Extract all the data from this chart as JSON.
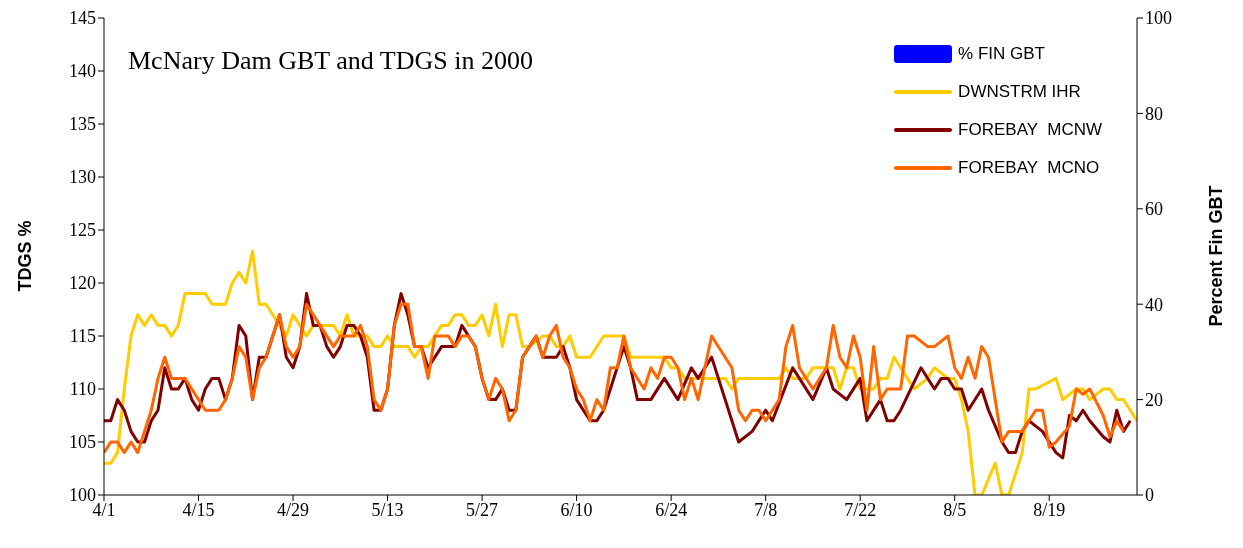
{
  "chart_data": {
    "type": "line",
    "title": "McNary Dam GBT and TDGS in 2000",
    "ylabel": "TDGS %",
    "y2label": "Percent Fin GBT",
    "xlim": [
      "--04-01",
      "--09-01"
    ],
    "xticks": [
      {
        "value": "--04-01",
        "label": "4/1"
      },
      {
        "value": "--04-15",
        "label": "4/15"
      },
      {
        "value": "--04-29",
        "label": "4/29"
      },
      {
        "value": "--05-13",
        "label": "5/13"
      },
      {
        "value": "--05-27",
        "label": "5/27"
      },
      {
        "value": "--06-10",
        "label": "6/10"
      },
      {
        "value": "--06-24",
        "label": "6/24"
      },
      {
        "value": "--07-08",
        "label": "7/8"
      },
      {
        "value": "--07-22",
        "label": "7/22"
      },
      {
        "value": "--08-05",
        "label": "8/5"
      },
      {
        "value": "--08-19",
        "label": "8/19"
      }
    ],
    "ylim": [
      100,
      145
    ],
    "yticks": [
      100,
      105,
      110,
      115,
      120,
      125,
      130,
      135,
      140,
      145
    ],
    "y2lim": [
      0,
      100
    ],
    "y2ticks": [
      0,
      20,
      40,
      60,
      80,
      100
    ],
    "legend": "top right",
    "marker": "none",
    "line_style": "solid",
    "series": [
      {
        "name": "% FIN GBT",
        "type": "bar",
        "color": "#0000ff"
      },
      {
        "name": "DWNSTRM IHR",
        "color": "#ffcc00",
        "x": [
          "--04-01",
          "--04-02",
          "--04-03",
          "--04-04",
          "--04-05",
          "--04-06",
          "--04-07",
          "--04-08",
          "--04-09",
          "--04-10",
          "--04-11",
          "--04-12",
          "--04-13",
          "--04-14",
          "--04-16",
          "--04-17",
          "--04-19",
          "--04-20",
          "--04-21",
          "--04-22",
          "--04-23",
          "--04-24",
          "--04-25",
          "--04-26",
          "--04-27",
          "--04-28",
          "--04-29",
          "--04-30",
          "--05-01",
          "--05-02",
          "--05-05",
          "--05-06",
          "--05-07",
          "--05-08",
          "--05-10",
          "--05-11",
          "--05-12",
          "--05-13",
          "--05-14",
          "--05-16",
          "--05-17",
          "--05-18",
          "--05-19",
          "--05-21",
          "--05-22",
          "--05-23",
          "--05-24",
          "--05-25",
          "--05-26",
          "--05-27",
          "--05-28",
          "--05-29",
          "--05-30",
          "--05-31",
          "--06-01",
          "--06-02",
          "--06-03",
          "--06-05",
          "--06-06",
          "--06-07",
          "--06-08",
          "--06-09",
          "--06-10",
          "--06-12",
          "--06-14",
          "--06-16",
          "--06-17",
          "--06-18",
          "--06-23",
          "--06-24",
          "--06-25",
          "--06-26",
          "--07-02",
          "--07-03",
          "--07-04",
          "--07-10",
          "--07-11",
          "--07-12",
          "--07-14",
          "--07-15",
          "--07-18",
          "--07-19",
          "--07-20",
          "--07-21",
          "--07-22",
          "--07-23",
          "--07-24",
          "--07-25",
          "--07-26",
          "--07-27",
          "--07-28",
          "--07-29",
          "--07-30",
          "--08-01",
          "--08-02",
          "--08-04",
          "--08-05",
          "--08-06",
          "--08-07",
          "--08-08",
          "--08-09",
          "--08-11",
          "--08-12",
          "--08-13",
          "--08-15",
          "--08-16",
          "--08-17",
          "--08-20",
          "--08-21",
          "--08-23",
          "--08-24",
          "--08-25",
          "--08-27",
          "--08-28",
          "--08-29",
          "--08-30",
          "--08-31",
          "--09-01"
        ],
        "values": [
          103,
          103,
          104,
          110,
          115,
          117,
          116,
          117,
          116,
          116,
          115,
          116,
          119,
          119,
          119,
          118,
          118,
          120,
          121,
          120,
          123,
          118,
          118,
          117,
          116,
          115,
          117,
          116,
          115,
          116,
          116,
          115,
          117,
          115,
          115,
          114,
          114,
          115,
          114,
          114,
          113,
          114,
          114,
          116,
          116,
          117,
          117,
          116,
          116,
          117,
          115,
          118,
          114,
          117,
          117,
          114,
          114,
          115,
          115,
          114,
          114,
          115,
          113,
          113,
          115,
          115,
          115,
          113,
          113,
          112,
          112,
          111,
          111,
          110,
          111,
          111,
          112,
          111,
          111,
          112,
          112,
          110,
          112,
          112,
          110,
          110,
          110,
          111,
          111,
          113,
          112,
          111,
          110,
          111,
          112,
          111,
          111,
          109,
          106,
          100,
          100,
          103,
          100,
          100,
          104,
          110,
          110,
          111,
          109,
          110,
          110,
          109,
          110,
          110,
          109,
          109,
          108,
          107
        ]
      },
      {
        "name": "FOREBAY  MCNW",
        "color": "#800000",
        "x": [
          "--04-01",
          "--04-02",
          "--04-03",
          "--04-04",
          "--04-05",
          "--04-06",
          "--04-07",
          "--04-08",
          "--04-09",
          "--04-10",
          "--04-11",
          "--04-12",
          "--04-13",
          "--04-14",
          "--04-15",
          "--04-16",
          "--04-17",
          "--04-18",
          "--04-19",
          "--04-20",
          "--04-21",
          "--04-22",
          "--04-23",
          "--04-24",
          "--04-25",
          "--04-27",
          "--04-28",
          "--04-29",
          "--04-30",
          "--05-01",
          "--05-02",
          "--05-03",
          "--05-04",
          "--05-05",
          "--05-06",
          "--05-07",
          "--05-08",
          "--05-09",
          "--05-10",
          "--05-11",
          "--05-12",
          "--05-13",
          "--05-14",
          "--05-15",
          "--05-16",
          "--05-17",
          "--05-18",
          "--05-19",
          "--05-20",
          "--05-21",
          "--05-23",
          "--05-24",
          "--05-25",
          "--05-26",
          "--05-27",
          "--05-28",
          "--05-29",
          "--05-30",
          "--05-31",
          "--06-01",
          "--06-02",
          "--06-03",
          "--06-04",
          "--06-05",
          "--06-07",
          "--06-08",
          "--06-09",
          "--06-10",
          "--06-11",
          "--06-12",
          "--06-13",
          "--06-14",
          "--06-15",
          "--06-17",
          "--06-18",
          "--06-19",
          "--06-21",
          "--06-23",
          "--06-25",
          "--06-27",
          "--06-28",
          "--06-30",
          "--07-01",
          "--07-03",
          "--07-04",
          "--07-06",
          "--07-07",
          "--07-08",
          "--07-09",
          "--07-12",
          "--07-13",
          "--07-15",
          "--07-17",
          "--07-18",
          "--07-20",
          "--07-22",
          "--07-23",
          "--07-25",
          "--07-26",
          "--07-27",
          "--07-28",
          "--07-31",
          "--08-02",
          "--08-03",
          "--08-04",
          "--08-05",
          "--08-06",
          "--08-07",
          "--08-09",
          "--08-10",
          "--08-12",
          "--08-13",
          "--08-14",
          "--08-15",
          "--08-16",
          "--08-17",
          "--08-18",
          "--08-20",
          "--08-21",
          "--08-22",
          "--08-23",
          "--08-24",
          "--08-25",
          "--08-27",
          "--08-28",
          "--08-29",
          "--08-30",
          "--08-31"
        ],
        "values": [
          107,
          107,
          109,
          108,
          106,
          105,
          105,
          107,
          108,
          112,
          110,
          110,
          111,
          109,
          108,
          110,
          111,
          111,
          109,
          111,
          116,
          115,
          109,
          113,
          113,
          117,
          113,
          112,
          114,
          119,
          116,
          116,
          114,
          113,
          114,
          116,
          116,
          115,
          113,
          108,
          108,
          110,
          116,
          119,
          117,
          114,
          114,
          112,
          113,
          114,
          114,
          116,
          115,
          114,
          111,
          109,
          109,
          110,
          108,
          108,
          113,
          114,
          115,
          113,
          113,
          114,
          112,
          109,
          108,
          107,
          107,
          108,
          110,
          114,
          112,
          109,
          109,
          111,
          109,
          112,
          111,
          113,
          111,
          107,
          105,
          106,
          107,
          108,
          107,
          112,
          111,
          109,
          112,
          110,
          109,
          111,
          107,
          109,
          107,
          107,
          108,
          112,
          110,
          111,
          111,
          110,
          110,
          108,
          110,
          108,
          105,
          104,
          104,
          106,
          107,
          106.5,
          106,
          104,
          103.5,
          107.5,
          107,
          108,
          107,
          105.5,
          105,
          108,
          106,
          107
        ]
      },
      {
        "name": "FOREBAY  MCNO",
        "color": "#ff6600",
        "x": [
          "--04-01",
          "--04-02",
          "--04-03",
          "--04-04",
          "--04-05",
          "--04-06",
          "--04-07",
          "--04-08",
          "--04-09",
          "--04-10",
          "--04-11",
          "--04-13",
          "--04-14",
          "--04-15",
          "--04-16",
          "--04-18",
          "--04-19",
          "--04-20",
          "--04-21",
          "--04-22",
          "--04-23",
          "--04-24",
          "--04-25",
          "--04-27",
          "--04-28",
          "--04-29",
          "--04-30",
          "--05-01",
          "--05-02",
          "--05-03",
          "--05-05",
          "--05-06",
          "--05-08",
          "--05-09",
          "--05-10",
          "--05-11",
          "--05-12",
          "--05-13",
          "--05-14",
          "--05-15",
          "--05-16",
          "--05-17",
          "--05-18",
          "--05-19",
          "--05-20",
          "--05-22",
          "--05-23",
          "--05-24",
          "--05-25",
          "--05-26",
          "--05-27",
          "--05-28",
          "--05-29",
          "--05-30",
          "--05-31",
          "--06-01",
          "--06-02",
          "--06-04",
          "--06-05",
          "--06-06",
          "--06-07",
          "--06-08",
          "--06-09",
          "--06-10",
          "--06-11",
          "--06-12",
          "--06-13",
          "--06-14",
          "--06-15",
          "--06-16",
          "--06-17",
          "--06-18",
          "--06-20",
          "--06-21",
          "--06-22",
          "--06-23",
          "--06-24",
          "--06-25",
          "--06-26",
          "--06-27",
          "--06-28",
          "--06-30",
          "--07-02",
          "--07-03",
          "--07-04",
          "--07-05",
          "--07-06",
          "--07-07",
          "--07-08",
          "--07-09",
          "--07-10",
          "--07-11",
          "--07-12",
          "--07-13",
          "--07-15",
          "--07-17",
          "--07-18",
          "--07-19",
          "--07-20",
          "--07-21",
          "--07-22",
          "--07-23",
          "--07-24",
          "--07-25",
          "--07-26",
          "--07-28",
          "--07-29",
          "--07-30",
          "--08-01",
          "--08-02",
          "--08-04",
          "--08-05",
          "--08-06",
          "--08-07",
          "--08-08",
          "--08-09",
          "--08-10",
          "--08-12",
          "--08-13",
          "--08-14",
          "--08-15",
          "--08-16",
          "--08-17",
          "--08-18",
          "--08-19",
          "--08-20",
          "--08-22",
          "--08-23",
          "--08-24",
          "--08-25",
          "--08-27",
          "--08-28",
          "--08-29",
          "--08-30"
        ],
        "values": [
          104,
          105,
          105,
          104,
          105,
          104,
          106,
          108,
          111,
          113,
          111,
          111,
          110,
          109,
          108,
          108,
          109,
          111,
          114,
          113,
          109,
          112,
          113,
          117,
          114,
          113,
          114,
          118,
          117,
          116,
          114,
          115,
          115,
          116,
          114,
          109,
          108,
          110,
          116,
          118,
          118,
          114,
          114,
          111,
          115,
          115,
          114,
          115,
          115,
          114,
          111,
          109,
          111,
          110,
          107,
          108,
          113,
          115,
          113,
          115,
          116,
          113,
          112,
          110,
          109,
          107,
          109,
          108,
          112,
          112,
          115,
          112,
          110,
          112,
          111,
          113,
          113,
          112,
          109,
          111,
          109,
          115,
          113,
          112,
          108,
          107,
          108,
          108,
          107,
          108,
          109,
          114,
          116,
          112,
          110,
          112,
          116,
          113,
          112,
          115,
          113,
          108,
          114,
          109,
          110,
          110,
          115,
          115,
          114,
          114,
          115,
          112,
          111,
          113,
          111,
          114,
          113,
          105,
          106,
          106,
          106,
          107,
          108,
          108,
          104.5,
          105,
          106.5,
          110,
          109.5,
          110,
          107.5,
          105.5,
          107,
          106
        ]
      }
    ]
  }
}
